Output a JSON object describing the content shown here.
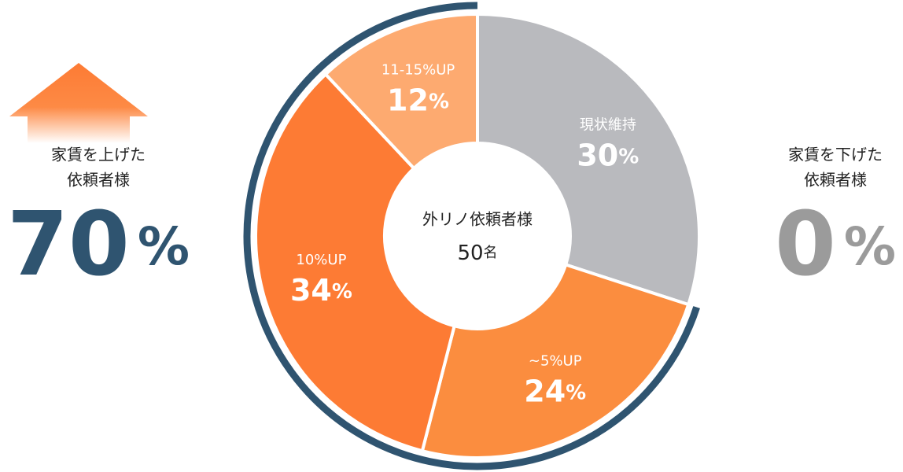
{
  "chart_data": {
    "type": "pie",
    "donut": true,
    "unit": "%",
    "center_title": "外リノ依頼者様",
    "center_value": 50,
    "center_unit": "名",
    "categories": [
      "現状維持",
      "~5%UP",
      "10%UP",
      "11-15%UP"
    ],
    "values": [
      30,
      24,
      34,
      12
    ],
    "colors": [
      "#b9babe",
      "#fb8d3f",
      "#fd7b34",
      "#fdaa70"
    ],
    "summary": [
      {
        "lines": [
          "家賃を上げた",
          "依頼者様"
        ],
        "value": 70,
        "color": "#2f5470"
      },
      {
        "lines": [
          "家賃を下げた",
          "依頼者様"
        ],
        "value": 0,
        "color": "#9b9b9b"
      }
    ]
  }
}
